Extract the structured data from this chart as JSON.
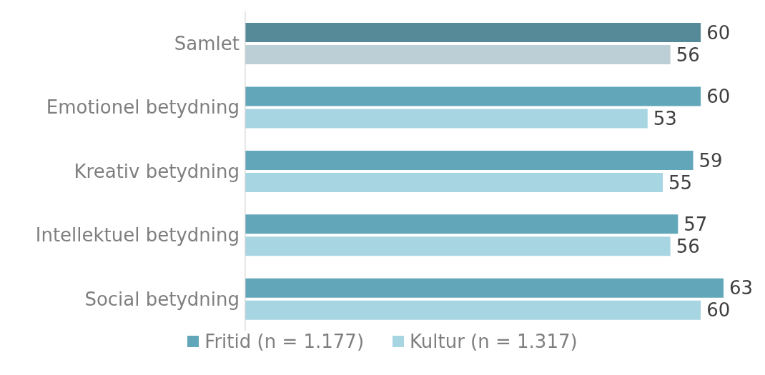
{
  "chart_data": {
    "type": "bar",
    "orientation": "horizontal",
    "categories": [
      "Samlet",
      "Emotionel betydning",
      "Kreativ betydning",
      "Intellektuel betydning",
      "Social betydning"
    ],
    "series": [
      {
        "name": "Fritid (n = 1.177)",
        "color": "#62a6b9",
        "colors": [
          "#578a99",
          "#62a6b9",
          "#62a6b9",
          "#62a6b9",
          "#62a6b9"
        ],
        "values": [
          60,
          60,
          59,
          57,
          63
        ]
      },
      {
        "name": "Kultur (n = 1.317)",
        "color": "#a8d5e2",
        "colors": [
          "#bccfd6",
          "#a8d5e2",
          "#a8d5e2",
          "#a8d5e2",
          "#a8d5e2"
        ],
        "values": [
          56,
          53,
          55,
          56,
          60
        ]
      }
    ],
    "data_labels": true,
    "grid": false,
    "legend": "bottom"
  }
}
